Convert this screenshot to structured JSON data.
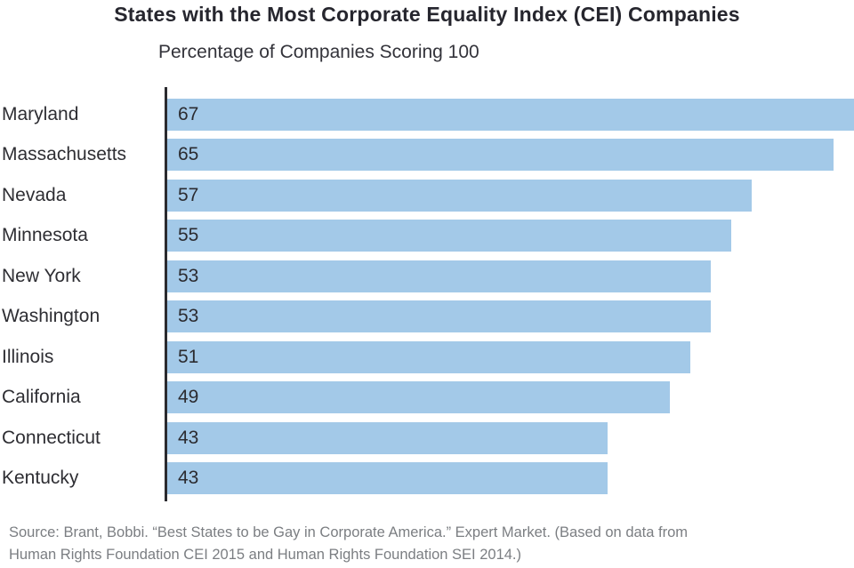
{
  "header": {
    "title": "States with the Most Corporate Equality Index (CEI) Companies",
    "subtitle": "Percentage of Companies Scoring 100"
  },
  "footer": {
    "line1": "Source: Brant, Bobbi. “Best States to be Gay in Corporate America.” Expert Market. (Based on data from",
    "line2": "Human Rights Foundation CEI 2015 and Human Rights Foundation SEI 2014.)"
  },
  "colors": {
    "bar_fill": "#a3c9e8",
    "axis_line": "#2b2b2f",
    "title_text": "#26262e",
    "label_text": "#2e2e33",
    "source_text": "#7b7e82",
    "background": "#ffffff"
  },
  "chart_data": {
    "type": "bar",
    "orientation": "horizontal",
    "title": "States with the Most Corporate Equality Index (CEI) Companies",
    "subtitle": "Percentage of Companies Scoring 100",
    "categories": [
      "Maryland",
      "Massachusetts",
      "Nevada",
      "Minnesota",
      "New York",
      "Washington",
      "Illinois",
      "California",
      "Connecticut",
      "Kentucky"
    ],
    "values": [
      67,
      65,
      57,
      55,
      53,
      53,
      51,
      49,
      43,
      43
    ],
    "xlabel": "",
    "ylabel": "",
    "xlim": [
      0,
      67
    ],
    "value_labels_position": "inside-start",
    "grid": false,
    "legend": false,
    "bar_color": "#a3c9e8"
  }
}
